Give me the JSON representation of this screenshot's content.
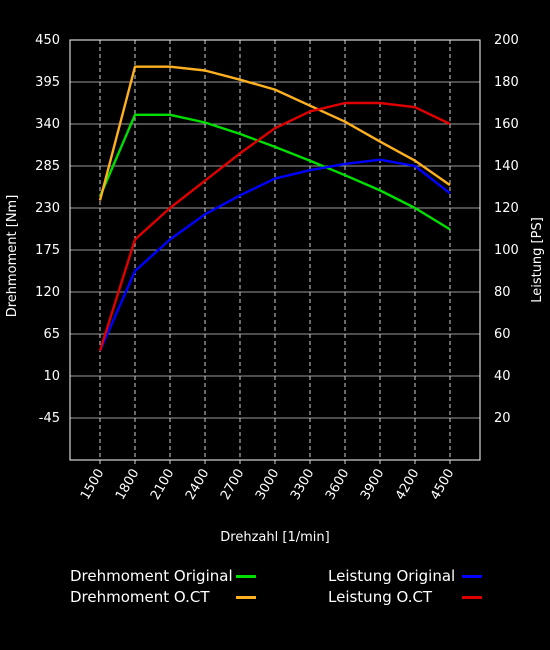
{
  "chart_data": {
    "type": "line",
    "title": "",
    "xlabel": "Drehzahl [1/min]",
    "ylabel_left": "Drehmoment [Nm]",
    "ylabel_right": "Leistung [PS]",
    "x": [
      1500,
      1800,
      2100,
      2400,
      2700,
      3000,
      3300,
      3600,
      3900,
      4200,
      4500
    ],
    "x_tick_labels": [
      "1500",
      "1800",
      "2100",
      "2400",
      "2700",
      "3000",
      "3300",
      "3600",
      "3900",
      "4200",
      "4500"
    ],
    "ylim_left": [
      -100,
      450
    ],
    "y_ticks_left": [
      "450",
      "395",
      "340",
      "285",
      "230",
      "175",
      "120",
      "65",
      "10",
      "-45"
    ],
    "ylim_right": [
      0,
      200
    ],
    "y_ticks_right": [
      "200",
      "180",
      "160",
      "140",
      "120",
      "100",
      "80",
      "60",
      "40",
      "20"
    ],
    "grid": true,
    "legend_position": "bottom",
    "series": [
      {
        "name": "Drehmoment Original",
        "axis": "left",
        "color": "#00e000",
        "values": [
          245,
          352,
          352,
          342,
          327,
          310,
          292,
          273,
          253,
          230,
          202
        ]
      },
      {
        "name": "Drehmoment O.CT",
        "axis": "left",
        "color": "#ffb020",
        "values": [
          240,
          415,
          415,
          410,
          398,
          385,
          364,
          343,
          317,
          292,
          260
        ]
      },
      {
        "name": "Leistung Original",
        "axis": "right",
        "color": "#0000ff",
        "values": [
          52,
          90,
          105,
          117,
          126,
          134,
          138,
          141,
          143,
          140,
          127
        ]
      },
      {
        "name": "Leistung O.CT",
        "axis": "right",
        "color": "#e00000",
        "values": [
          52,
          105,
          120,
          133,
          146,
          158,
          166,
          170,
          170,
          168,
          160
        ]
      }
    ]
  }
}
